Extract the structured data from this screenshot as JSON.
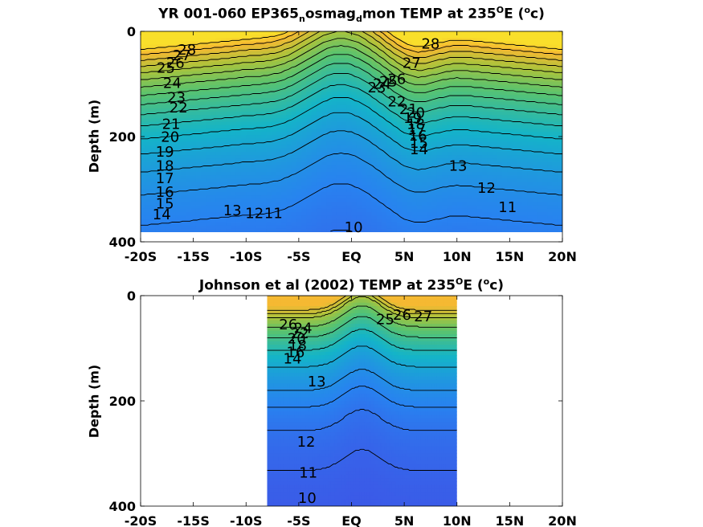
{
  "chart_data": [
    {
      "type": "contour",
      "title_parts": [
        "YR 001-060 EP365",
        "n",
        "osmag",
        "d",
        "mon TEMP at 235",
        "O",
        "E (",
        "o",
        "c)"
      ],
      "ylabel": "Depth (m)",
      "x_ticks": [
        "-20S",
        "-15S",
        "-10S",
        "-5S",
        "EQ",
        "5N",
        "10N",
        "15N",
        "20N"
      ],
      "x_range": [
        -20,
        20
      ],
      "y_ticks": [
        "0",
        "200",
        "400"
      ],
      "y_range": [
        0,
        400
      ],
      "y_inverted": true,
      "data_extent": {
        "lat": [
          -20,
          20
        ],
        "depth": [
          0,
          400
        ]
      },
      "contour_labels": [
        {
          "text": "28",
          "lat": -15.6,
          "depth": 37
        },
        {
          "text": "27",
          "lat": -16.1,
          "depth": 48
        },
        {
          "text": "26",
          "lat": -16.7,
          "depth": 63
        },
        {
          "text": "25",
          "lat": -17.6,
          "depth": 73
        },
        {
          "text": "24",
          "lat": -17.0,
          "depth": 103
        },
        {
          "text": "23",
          "lat": -16.6,
          "depth": 132
        },
        {
          "text": "22",
          "lat": -16.4,
          "depth": 152
        },
        {
          "text": "21",
          "lat": -17.1,
          "depth": 185
        },
        {
          "text": "20",
          "lat": -17.2,
          "depth": 210
        },
        {
          "text": "19",
          "lat": -17.7,
          "depth": 240
        },
        {
          "text": "18",
          "lat": -17.7,
          "depth": 268
        },
        {
          "text": "17",
          "lat": -17.7,
          "depth": 293
        },
        {
          "text": "16",
          "lat": -17.7,
          "depth": 320
        },
        {
          "text": "15",
          "lat": -17.7,
          "depth": 343
        },
        {
          "text": "14",
          "lat": -18.0,
          "depth": 365
        },
        {
          "text": "13",
          "lat": -11.3,
          "depth": 357
        },
        {
          "text": "12",
          "lat": -9.2,
          "depth": 362
        },
        {
          "text": "11",
          "lat": -7.4,
          "depth": 362
        },
        {
          "text": "10",
          "lat": 0.2,
          "depth": 390
        },
        {
          "text": "28",
          "lat": 7.5,
          "depth": 25
        },
        {
          "text": "27",
          "lat": 5.7,
          "depth": 63
        },
        {
          "text": "26",
          "lat": 4.3,
          "depth": 95
        },
        {
          "text": "25",
          "lat": 3.5,
          "depth": 100
        },
        {
          "text": "24",
          "lat": 2.9,
          "depth": 105
        },
        {
          "text": "23",
          "lat": 2.4,
          "depth": 112
        },
        {
          "text": "22",
          "lat": 4.3,
          "depth": 140
        },
        {
          "text": "21",
          "lat": 5.4,
          "depth": 155
        },
        {
          "text": "20",
          "lat": 6.1,
          "depth": 162
        },
        {
          "text": "19",
          "lat": 5.8,
          "depth": 173
        },
        {
          "text": "18",
          "lat": 6.1,
          "depth": 185
        },
        {
          "text": "17",
          "lat": 6.2,
          "depth": 195
        },
        {
          "text": "16",
          "lat": 6.3,
          "depth": 208
        },
        {
          "text": "15",
          "lat": 6.4,
          "depth": 222
        },
        {
          "text": "14",
          "lat": 6.4,
          "depth": 235
        },
        {
          "text": "13",
          "lat": 10.1,
          "depth": 268
        },
        {
          "text": "12",
          "lat": 12.8,
          "depth": 312
        },
        {
          "text": "11",
          "lat": 14.8,
          "depth": 350
        }
      ]
    },
    {
      "type": "contour",
      "title_parts": [
        "Johnson et al (2002) TEMP at 235",
        "O",
        "E (",
        "o",
        "c)"
      ],
      "ylabel": "Depth (m)",
      "x_ticks": [
        "-20S",
        "-15S",
        "-10S",
        "-5S",
        "EQ",
        "5N",
        "10N",
        "15N",
        "20N"
      ],
      "x_range": [
        -20,
        20
      ],
      "y_ticks": [
        "0",
        "200",
        "400"
      ],
      "y_range": [
        0,
        400
      ],
      "y_inverted": true,
      "data_extent": {
        "lat": [
          -8,
          10
        ],
        "depth": [
          0,
          400
        ]
      },
      "contour_labels": [
        {
          "text": "26",
          "lat": -6.0,
          "depth": 55
        },
        {
          "text": "24",
          "lat": -4.6,
          "depth": 62
        },
        {
          "text": "22",
          "lat": -4.9,
          "depth": 72
        },
        {
          "text": "20",
          "lat": -5.2,
          "depth": 82
        },
        {
          "text": "18",
          "lat": -5.1,
          "depth": 95
        },
        {
          "text": "16",
          "lat": -5.3,
          "depth": 108
        },
        {
          "text": "14",
          "lat": -5.6,
          "depth": 120
        },
        {
          "text": "13",
          "lat": -3.3,
          "depth": 163
        },
        {
          "text": "12",
          "lat": -4.3,
          "depth": 278
        },
        {
          "text": "11",
          "lat": -4.1,
          "depth": 337
        },
        {
          "text": "10",
          "lat": -4.2,
          "depth": 385
        },
        {
          "text": "25",
          "lat": 3.2,
          "depth": 45
        },
        {
          "text": "26",
          "lat": 4.8,
          "depth": 37
        },
        {
          "text": "27",
          "lat": 6.8,
          "depth": 40
        }
      ]
    }
  ]
}
